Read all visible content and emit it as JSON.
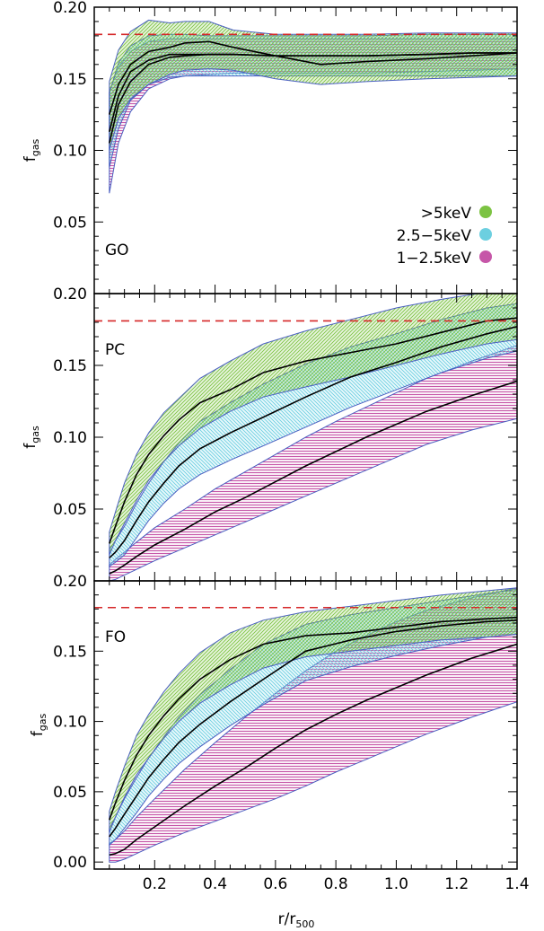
{
  "chart_data": {
    "type": "area",
    "xlabel": "r/r",
    "xlabel_sub": "500",
    "ylabel": "f",
    "ylabel_sub": "gas",
    "ylabel_sub_last": "gas",
    "xlim": [
      0.0,
      1.4
    ],
    "x_ticks": [
      "0.2",
      "0.4",
      "0.6",
      "0.8",
      "1.0",
      "1.2",
      "1.4"
    ],
    "x_tick_values": [
      0.2,
      0.4,
      0.6,
      0.8,
      1.0,
      1.2,
      1.4
    ],
    "reference_line": {
      "y": 0.181,
      "color": "#d62728",
      "style": "dashed"
    },
    "legend": [
      {
        "label": ">5keV",
        "color": "#7cc342"
      },
      {
        "label": "2.5−5keV",
        "color": "#6ccfe0"
      },
      {
        "label": "1−2.5keV",
        "color": "#c656a8"
      }
    ],
    "panels": [
      {
        "label": "GO",
        "ylim": [
          0.0,
          0.2
        ],
        "y_ticks": [
          "0.05",
          "0.10",
          "0.15",
          "0.20"
        ],
        "y_tick_values": [
          0.05,
          0.1,
          0.15,
          0.2
        ],
        "series": [
          {
            "band": "hot",
            "color": "#7cc342",
            "x": [
              0.05,
              0.08,
              0.12,
              0.18,
              0.25,
              0.3,
              0.38,
              0.46,
              0.6,
              0.75,
              0.9,
              1.1,
              1.25,
              1.4
            ],
            "mean": [
              0.125,
              0.146,
              0.16,
              0.169,
              0.172,
              0.175,
              0.176,
              0.172,
              0.166,
              0.16,
              0.162,
              0.164,
              0.166,
              0.168
            ],
            "upper": [
              0.148,
              0.17,
              0.183,
              0.191,
              0.189,
              0.19,
              0.19,
              0.184,
              0.181,
              0.181,
              0.181,
              0.182,
              0.182,
              0.182
            ],
            "lower": [
              0.1,
              0.122,
              0.136,
              0.146,
              0.153,
              0.156,
              0.157,
              0.156,
              0.15,
              0.146,
              0.148,
              0.15,
              0.151,
              0.152
            ]
          },
          {
            "band": "mid",
            "color": "#6ccfe0",
            "x": [
              0.05,
              0.08,
              0.12,
              0.18,
              0.25,
              0.3,
              0.38,
              0.46,
              0.6,
              0.75,
              0.9,
              1.1,
              1.25,
              1.4
            ],
            "mean": [
              0.113,
              0.138,
              0.155,
              0.163,
              0.167,
              0.167,
              0.167,
              0.167,
              0.166,
              0.166,
              0.166,
              0.167,
              0.168,
              0.168
            ],
            "upper": [
              0.14,
              0.161,
              0.173,
              0.18,
              0.181,
              0.181,
              0.18,
              0.18,
              0.18,
              0.18,
              0.18,
              0.181,
              0.181,
              0.181
            ],
            "lower": [
              0.088,
              0.115,
              0.135,
              0.146,
              0.151,
              0.152,
              0.152,
              0.152,
              0.152,
              0.152,
              0.152,
              0.152,
              0.152,
              0.152
            ]
          },
          {
            "band": "cool",
            "color": "#c656a8",
            "x": [
              0.05,
              0.08,
              0.12,
              0.18,
              0.25,
              0.3,
              0.38,
              0.46,
              0.6,
              0.75,
              0.9,
              1.1,
              1.25,
              1.4
            ],
            "mean": [
              0.105,
              0.132,
              0.148,
              0.16,
              0.165,
              0.166,
              0.167,
              0.167,
              0.166,
              0.166,
              0.166,
              0.167,
              0.168,
              0.168
            ],
            "upper": [
              0.141,
              0.158,
              0.169,
              0.176,
              0.178,
              0.178,
              0.178,
              0.178,
              0.178,
              0.178,
              0.178,
              0.178,
              0.178,
              0.178
            ],
            "lower": [
              0.07,
              0.105,
              0.127,
              0.143,
              0.15,
              0.152,
              0.153,
              0.154,
              0.154,
              0.154,
              0.154,
              0.155,
              0.156,
              0.157
            ]
          }
        ]
      },
      {
        "label": "PC",
        "ylim": [
          0.0,
          0.2
        ],
        "y_ticks": [
          "0.05",
          "0.10",
          "0.15",
          "0.20"
        ],
        "y_tick_values": [
          0.05,
          0.1,
          0.15,
          0.2
        ],
        "series": [
          {
            "band": "hot",
            "color": "#7cc342",
            "x": [
              0.05,
              0.07,
              0.1,
              0.14,
              0.18,
              0.23,
              0.28,
              0.35,
              0.45,
              0.56,
              0.7,
              0.85,
              1.0,
              1.15,
              1.3,
              1.4
            ],
            "mean": [
              0.026,
              0.038,
              0.055,
              0.074,
              0.088,
              0.101,
              0.112,
              0.124,
              0.133,
              0.145,
              0.153,
              0.159,
              0.165,
              0.173,
              0.181,
              0.183
            ],
            "upper": [
              0.034,
              0.048,
              0.068,
              0.088,
              0.103,
              0.117,
              0.127,
              0.141,
              0.153,
              0.165,
              0.174,
              0.182,
              0.19,
              0.196,
              0.201,
              0.203
            ],
            "lower": [
              0.018,
              0.028,
              0.04,
              0.056,
              0.07,
              0.083,
              0.094,
              0.106,
              0.118,
              0.128,
              0.135,
              0.142,
              0.15,
              0.158,
              0.165,
              0.168
            ]
          },
          {
            "band": "mid",
            "color": "#6ccfe0",
            "x": [
              0.05,
              0.07,
              0.1,
              0.14,
              0.18,
              0.23,
              0.28,
              0.35,
              0.45,
              0.56,
              0.7,
              0.85,
              1.0,
              1.15,
              1.3,
              1.4
            ],
            "mean": [
              0.016,
              0.02,
              0.028,
              0.042,
              0.055,
              0.068,
              0.08,
              0.092,
              0.103,
              0.114,
              0.128,
              0.142,
              0.152,
              0.163,
              0.172,
              0.177
            ],
            "upper": [
              0.022,
              0.028,
              0.038,
              0.054,
              0.068,
              0.083,
              0.096,
              0.111,
              0.124,
              0.137,
              0.151,
              0.163,
              0.172,
              0.182,
              0.19,
              0.193
            ],
            "lower": [
              0.01,
              0.013,
              0.018,
              0.03,
              0.042,
              0.054,
              0.064,
              0.074,
              0.084,
              0.094,
              0.107,
              0.121,
              0.133,
              0.145,
              0.155,
              0.16
            ]
          },
          {
            "band": "cool",
            "color": "#c656a8",
            "x": [
              0.05,
              0.07,
              0.1,
              0.14,
              0.2,
              0.3,
              0.4,
              0.5,
              0.6,
              0.7,
              0.8,
              0.9,
              1.0,
              1.1,
              1.25,
              1.4
            ],
            "mean": [
              0.005,
              0.007,
              0.011,
              0.017,
              0.025,
              0.036,
              0.048,
              0.058,
              0.069,
              0.08,
              0.09,
              0.1,
              0.109,
              0.118,
              0.129,
              0.139
            ],
            "upper": [
              0.011,
              0.015,
              0.02,
              0.027,
              0.037,
              0.05,
              0.064,
              0.076,
              0.088,
              0.1,
              0.111,
              0.121,
              0.131,
              0.141,
              0.153,
              0.164
            ],
            "lower": [
              0.0,
              0.001,
              0.004,
              0.008,
              0.014,
              0.023,
              0.032,
              0.041,
              0.05,
              0.059,
              0.068,
              0.077,
              0.086,
              0.095,
              0.105,
              0.113
            ]
          }
        ]
      },
      {
        "label": "FO",
        "ylim": [
          -0.005,
          0.2
        ],
        "y_ticks": [
          "0.00",
          "0.05",
          "0.10",
          "0.15",
          "0.20"
        ],
        "y_tick_values": [
          0.0,
          0.05,
          0.1,
          0.15,
          0.2
        ],
        "series": [
          {
            "band": "hot",
            "color": "#7cc342",
            "x": [
              0.05,
              0.07,
              0.1,
              0.14,
              0.18,
              0.23,
              0.28,
              0.35,
              0.45,
              0.56,
              0.7,
              0.85,
              1.0,
              1.15,
              1.3,
              1.4
            ],
            "mean": [
              0.03,
              0.042,
              0.058,
              0.076,
              0.09,
              0.104,
              0.116,
              0.13,
              0.144,
              0.155,
              0.161,
              0.163,
              0.167,
              0.171,
              0.173,
              0.174
            ],
            "upper": [
              0.036,
              0.05,
              0.068,
              0.09,
              0.105,
              0.121,
              0.134,
              0.149,
              0.163,
              0.172,
              0.178,
              0.182,
              0.186,
              0.19,
              0.193,
              0.195
            ],
            "lower": [
              0.021,
              0.032,
              0.046,
              0.062,
              0.074,
              0.088,
              0.1,
              0.113,
              0.126,
              0.138,
              0.146,
              0.15,
              0.154,
              0.158,
              0.16,
              0.162
            ]
          },
          {
            "band": "mid",
            "color": "#6ccfe0",
            "x": [
              0.05,
              0.07,
              0.1,
              0.14,
              0.18,
              0.23,
              0.28,
              0.35,
              0.45,
              0.56,
              0.7,
              0.85,
              1.0,
              1.15,
              1.3,
              1.4
            ],
            "mean": [
              0.018,
              0.024,
              0.034,
              0.047,
              0.06,
              0.073,
              0.085,
              0.098,
              0.114,
              0.13,
              0.15,
              0.158,
              0.164,
              0.168,
              0.171,
              0.172
            ],
            "upper": [
              0.024,
              0.032,
              0.045,
              0.06,
              0.074,
              0.089,
              0.103,
              0.119,
              0.137,
              0.155,
              0.169,
              0.176,
              0.181,
              0.186,
              0.191,
              0.194
            ],
            "lower": [
              0.012,
              0.016,
              0.024,
              0.035,
              0.047,
              0.059,
              0.07,
              0.082,
              0.097,
              0.112,
              0.129,
              0.139,
              0.147,
              0.154,
              0.16,
              0.162
            ]
          },
          {
            "band": "cool",
            "color": "#c656a8",
            "x": [
              0.05,
              0.07,
              0.1,
              0.14,
              0.2,
              0.3,
              0.4,
              0.5,
              0.6,
              0.7,
              0.8,
              0.9,
              1.0,
              1.1,
              1.25,
              1.4
            ],
            "mean": [
              0.005,
              0.006,
              0.009,
              0.016,
              0.025,
              0.04,
              0.054,
              0.067,
              0.081,
              0.094,
              0.105,
              0.115,
              0.124,
              0.133,
              0.145,
              0.155
            ],
            "upper": [
              0.013,
              0.016,
              0.022,
              0.032,
              0.045,
              0.066,
              0.085,
              0.103,
              0.12,
              0.136,
              0.15,
              0.161,
              0.171,
              0.179,
              0.188,
              0.195
            ],
            "lower": [
              0.0,
              0.0,
              0.002,
              0.006,
              0.012,
              0.021,
              0.029,
              0.037,
              0.045,
              0.054,
              0.064,
              0.073,
              0.082,
              0.091,
              0.103,
              0.114
            ]
          }
        ]
      }
    ]
  }
}
